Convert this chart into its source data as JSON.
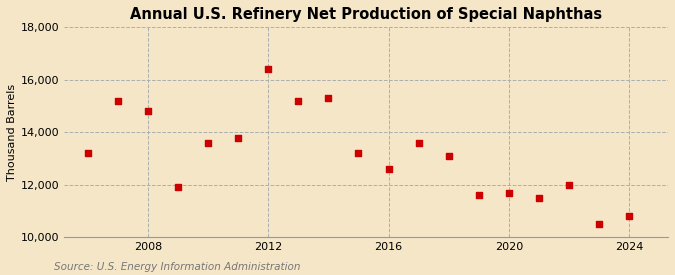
{
  "title": "Annual U.S. Refinery Net Production of Special Naphthas",
  "ylabel": "Thousand Barrels",
  "source": "Source: U.S. Energy Information Administration",
  "years": [
    2006,
    2007,
    2008,
    2009,
    2010,
    2011,
    2012,
    2013,
    2014,
    2015,
    2016,
    2017,
    2018,
    2019,
    2020,
    2021,
    2022,
    2023,
    2024
  ],
  "values": [
    13200,
    15200,
    14800,
    11900,
    13600,
    13800,
    16400,
    15200,
    15300,
    13200,
    12600,
    13600,
    13100,
    11600,
    11700,
    11500,
    12000,
    10500,
    10800
  ],
  "ylim": [
    10000,
    18000
  ],
  "yticks": [
    10000,
    12000,
    14000,
    16000,
    18000
  ],
  "xticks": [
    2008,
    2012,
    2016,
    2020,
    2024
  ],
  "xlim": [
    2005.2,
    2025.3
  ],
  "marker_color": "#cc0000",
  "marker_size": 18,
  "background_color": "#f5e6c8",
  "plot_bg_color": "#f5e6c8",
  "grid_color": "#aab0b0",
  "title_fontsize": 10.5,
  "label_fontsize": 8,
  "tick_fontsize": 8,
  "source_fontsize": 7.5
}
